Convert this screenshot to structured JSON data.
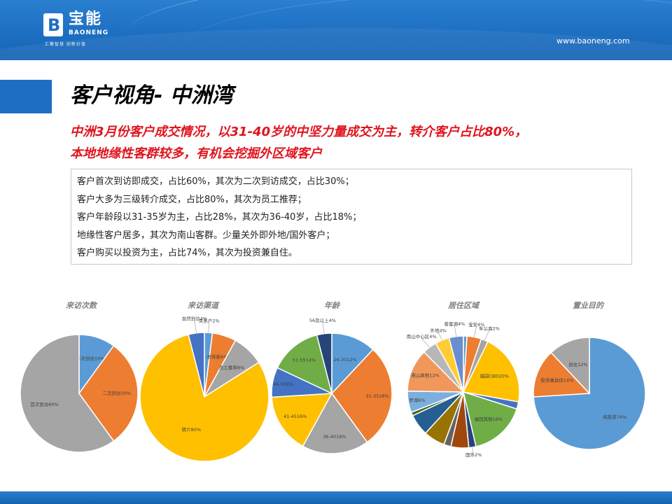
{
  "header": {
    "logo_mark": "B",
    "logo_cn": "宝能",
    "logo_en": "BAONENG",
    "logo_slogan": "汇聚智慧  创新价值",
    "website": "www.baoneng.com"
  },
  "title": "客户视角- 中洲湾",
  "subtitle_lines": [
    "中洲3月份客户成交情况，以31-40岁的中坚力量成交为主，转介客户占比80%，",
    "本地地缘性客群较多，有机会挖掘外区域客户"
  ],
  "summary_lines": [
    "客户首次到访即成交，占比60%，其次为二次到访成交，占比30%；",
    "客户大多为三级转介成交，占比80%，其次为员工推荐；",
    "客户年龄段以31-35岁为主，占比28%，其次为36-40岁，占比18%；",
    "地缘性客户居多，其次为南山客群。少量关外即外地/国外客户；",
    "客户购买以投资为主，占比74%，其次为投资兼自住。"
  ],
  "colors": {
    "brand_blue": "#1e6fc3",
    "title_accent": "#1e6fc3",
    "subtitle_red": "#e0141e",
    "chart_title_gray": "#808080"
  },
  "chart_data": [
    {
      "type": "pie",
      "title": "来访次数",
      "slices": [
        {
          "label": "多次到访10%",
          "value": 10,
          "color": "#5b9bd5"
        },
        {
          "label": "二次到访30%",
          "value": 30,
          "color": "#ed7d31"
        },
        {
          "label": "首次到访60%",
          "value": 60,
          "color": "#a5a5a5"
        }
      ]
    },
    {
      "type": "pie",
      "title": "来访渠道",
      "slices": [
        {
          "label": "关系户2%",
          "value": 2,
          "color": "#5b9bd5"
        },
        {
          "label": "老带新6%",
          "value": 6,
          "color": "#ed7d31"
        },
        {
          "label": "员工推荐8%",
          "value": 8,
          "color": "#a5a5a5"
        },
        {
          "label": "转介80%",
          "value": 80,
          "color": "#ffc000"
        },
        {
          "label": "自然到访4%",
          "value": 4,
          "color": "#4472c4"
        }
      ]
    },
    {
      "type": "pie",
      "title": "年龄",
      "slices": [
        {
          "label": "26-3012%",
          "value": 12,
          "color": "#5b9bd5"
        },
        {
          "label": "31-3528%",
          "value": 28,
          "color": "#ed7d31"
        },
        {
          "label": "36-4018%",
          "value": 18,
          "color": "#a5a5a5"
        },
        {
          "label": "41-4516%",
          "value": 16,
          "color": "#ffc000"
        },
        {
          "label": "46-508%",
          "value": 8,
          "color": "#4472c4"
        },
        {
          "label": "51-5514%",
          "value": 14,
          "color": "#70ad47"
        },
        {
          "label": "56及以上4%",
          "value": 4,
          "color": "#264478"
        }
      ]
    },
    {
      "type": "pie",
      "title": "居住区域",
      "slices": [
        {
          "label": "",
          "value": 1,
          "color": "#5b9bd5"
        },
        {
          "label": "宝安4%",
          "value": 4,
          "color": "#ed7d31"
        },
        {
          "label": "车公庙2%",
          "value": 2,
          "color": "#a5a5a5"
        },
        {
          "label": "福田CBD20%",
          "value": 20,
          "color": "#ffc000"
        },
        {
          "label": "",
          "value": 2,
          "color": "#4472c4"
        },
        {
          "label": "福田其他16%",
          "value": 16,
          "color": "#70ad47"
        },
        {
          "label": "国外2%",
          "value": 2,
          "color": "#264478"
        },
        {
          "label": "",
          "value": 5,
          "color": "#9e480e"
        },
        {
          "label": "",
          "value": 2,
          "color": "#636363"
        },
        {
          "label": "",
          "value": 6,
          "color": "#997300"
        },
        {
          "label": "",
          "value": 6,
          "color": "#255e91"
        },
        {
          "label": "",
          "value": 1,
          "color": "#43682b"
        },
        {
          "label": "罗湖6%",
          "value": 6,
          "color": "#7cafdd"
        },
        {
          "label": "南山其他12%",
          "value": 12,
          "color": "#f1975a"
        },
        {
          "label": "南山中心区4%",
          "value": 4,
          "color": "#b7b7b7"
        },
        {
          "label": "外地4%",
          "value": 4,
          "color": "#ffcd33"
        },
        {
          "label": "香蜜湖4%",
          "value": 4,
          "color": "#698ed0"
        }
      ]
    },
    {
      "type": "pie",
      "title": "置业目的",
      "slices": [
        {
          "label": "纯投资74%",
          "value": 74,
          "color": "#5b9bd5"
        },
        {
          "label": "投资兼自住14%",
          "value": 14,
          "color": "#ed7d31"
        },
        {
          "label": "自住12%",
          "value": 12,
          "color": "#a5a5a5"
        }
      ]
    }
  ]
}
